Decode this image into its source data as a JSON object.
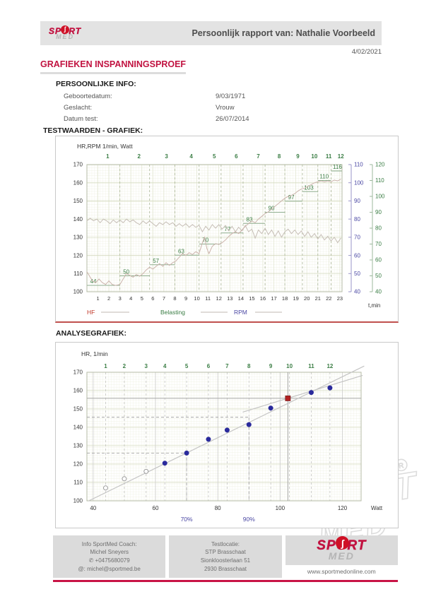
{
  "colors": {
    "accent_red": "#c11240",
    "rule_crimson": "#c81446",
    "stage_green": "#3a7d44",
    "rpm_blue": "#4a47a3",
    "hf_red": "#c0392b",
    "trace_hf": "#ccb3ac",
    "trace_rpm": "#c6beb6",
    "grid_minor": "#eceedd",
    "grid_major_h": "#d4dabe",
    "grid_minute_v": "#e2e6d2",
    "stage_dash": "#a9b497",
    "helper_grey": "#a8a8a8",
    "trend_grey": "#c4c4c4",
    "point_navy": "#2a2a9c",
    "square_red": "#b22222"
  },
  "logo": {
    "sport": "SPORT",
    "med": "MED",
    "badge": "ʃ"
  },
  "header": {
    "title": "Persoonlijk rapport van: Nathalie Voorbeeld",
    "date": "4/02/2021"
  },
  "main_title": "GRAFIEKEN INSPANNINGSPROEF",
  "personal_info": {
    "heading": "PERSOONLIJKE INFO:",
    "rows": [
      {
        "label": "Geboortedatum:",
        "value": "9/03/1971"
      },
      {
        "label": "Geslacht:",
        "value": "Vrouw"
      },
      {
        "label": "Datum test:",
        "value": "26/07/2014"
      }
    ]
  },
  "sections": {
    "testwaarden": "TESTWAARDEN - GRAFIEK:",
    "analyse": "ANALYSEGRAFIEK:"
  },
  "chart_data": [
    {
      "type": "line",
      "title": "HR,RPM 1/min, Watt",
      "xlabel": "t,min",
      "xlim": [
        0,
        23.2
      ],
      "x_ticks": [
        1,
        2,
        3,
        4,
        5,
        6,
        7,
        8,
        9,
        10,
        11,
        12,
        13,
        14,
        15,
        16,
        17,
        18,
        19,
        20,
        21,
        22,
        23
      ],
      "left_axis": {
        "lim": [
          100,
          170
        ],
        "ticks": [
          100,
          110,
          120,
          130,
          140,
          150,
          160,
          170
        ]
      },
      "right_axis_rpm": {
        "lim": [
          40,
          110
        ],
        "ticks": [
          40,
          50,
          60,
          70,
          80,
          90,
          100,
          110
        ]
      },
      "right_axis_watt": {
        "lim": [
          40,
          120
        ],
        "ticks": [
          40,
          50,
          60,
          70,
          80,
          90,
          100,
          110,
          120
        ]
      },
      "stages": {
        "numbers": [
          1,
          2,
          3,
          4,
          5,
          6,
          7,
          8,
          9,
          10,
          11,
          12
        ],
        "watts": [
          44,
          50,
          57,
          63,
          70,
          77,
          83,
          90,
          97,
          103,
          110,
          116
        ],
        "boundaries_min": [
          0,
          3,
          5.7,
          8,
          10.2,
          12.2,
          14.2,
          16.2,
          18.0,
          19.6,
          21.0,
          22.2,
          23.2
        ]
      },
      "legend": [
        {
          "label": "HF",
          "color_key": "hf_red"
        },
        {
          "label": "Belasting",
          "color_key": "stage_green"
        },
        {
          "label": "RPM",
          "color_key": "rpm_blue"
        }
      ],
      "series": [
        {
          "name": "HF",
          "unit": "1/min",
          "points": [
            [
              0,
              111
            ],
            [
              0.2,
              109
            ],
            [
              0.5,
              106
            ],
            [
              0.8,
              105
            ],
            [
              1.1,
              107
            ],
            [
              1.4,
              105
            ],
            [
              1.7,
              104
            ],
            [
              2.0,
              106
            ],
            [
              2.3,
              104
            ],
            [
              2.6,
              103.5
            ],
            [
              3.0,
              104
            ],
            [
              3.3,
              107
            ],
            [
              3.6,
              110
            ],
            [
              3.9,
              109
            ],
            [
              4.2,
              108
            ],
            [
              4.5,
              109.5
            ],
            [
              4.8,
              108.5
            ],
            [
              5.1,
              110
            ],
            [
              5.4,
              112
            ],
            [
              5.7,
              113.5
            ],
            [
              6.0,
              112.5
            ],
            [
              6.3,
              114
            ],
            [
              6.6,
              115.5
            ],
            [
              6.9,
              114
            ],
            [
              7.2,
              116
            ],
            [
              7.5,
              114.5
            ],
            [
              7.8,
              116
            ],
            [
              8.1,
              117
            ],
            [
              8.4,
              119
            ],
            [
              8.7,
              121
            ],
            [
              9.0,
              120
            ],
            [
              9.3,
              121.5
            ],
            [
              9.6,
              120.5
            ],
            [
              9.9,
              122
            ],
            [
              10.2,
              121
            ],
            [
              10.5,
              127
            ],
            [
              10.7,
              130
            ],
            [
              10.9,
              124
            ],
            [
              11.1,
              121
            ],
            [
              11.4,
              125
            ],
            [
              11.7,
              126.5
            ],
            [
              12.0,
              126
            ],
            [
              12.3,
              127
            ],
            [
              12.6,
              128.5
            ],
            [
              12.9,
              130.5
            ],
            [
              13.2,
              132
            ],
            [
              13.5,
              133
            ],
            [
              13.8,
              132
            ],
            [
              14.1,
              134
            ],
            [
              14.4,
              136
            ],
            [
              14.7,
              137.5
            ],
            [
              15.0,
              139
            ],
            [
              15.3,
              138
            ],
            [
              15.6,
              140
            ],
            [
              15.9,
              141.5
            ],
            [
              16.2,
              143
            ],
            [
              16.5,
              144
            ],
            [
              16.8,
              145.5
            ],
            [
              17.1,
              147
            ],
            [
              17.4,
              148.5
            ],
            [
              17.7,
              150
            ],
            [
              18.0,
              151.5
            ],
            [
              18.3,
              152.5
            ],
            [
              18.6,
              153
            ],
            [
              18.9,
              154
            ],
            [
              19.2,
              155.5
            ],
            [
              19.5,
              156.5
            ],
            [
              19.8,
              157
            ],
            [
              20.1,
              158
            ],
            [
              20.4,
              159
            ],
            [
              20.7,
              160
            ],
            [
              21.0,
              160.5
            ],
            [
              21.3,
              161
            ],
            [
              21.6,
              160.5
            ],
            [
              21.9,
              161
            ],
            [
              22.2,
              160.5
            ],
            [
              22.5,
              161.5
            ],
            [
              22.8,
              161
            ],
            [
              23.1,
              162
            ]
          ]
        },
        {
          "name": "RPM",
          "unit": "1/min",
          "points": [
            [
              0,
              79
            ],
            [
              0.3,
              80.5
            ],
            [
              0.6,
              79
            ],
            [
              0.9,
              80
            ],
            [
              1.2,
              78
            ],
            [
              1.5,
              80
            ],
            [
              1.8,
              79
            ],
            [
              2.1,
              77.5
            ],
            [
              2.4,
              79.5
            ],
            [
              2.7,
              78
            ],
            [
              3.0,
              79.5
            ],
            [
              3.3,
              78
            ],
            [
              3.6,
              80
            ],
            [
              3.9,
              78.5
            ],
            [
              4.2,
              79.5
            ],
            [
              4.5,
              78
            ],
            [
              4.8,
              77
            ],
            [
              5.1,
              79
            ],
            [
              5.4,
              77.5
            ],
            [
              5.7,
              79
            ],
            [
              6.0,
              77.5
            ],
            [
              6.3,
              76
            ],
            [
              6.6,
              78
            ],
            [
              6.9,
              77
            ],
            [
              7.2,
              78.5
            ],
            [
              7.5,
              77
            ],
            [
              7.8,
              78
            ],
            [
              8.1,
              76
            ],
            [
              8.4,
              77.5
            ],
            [
              8.7,
              76
            ],
            [
              9.0,
              77.5
            ],
            [
              9.3,
              75.5
            ],
            [
              9.6,
              77
            ],
            [
              9.9,
              75.5
            ],
            [
              10.2,
              76.5
            ],
            [
              10.5,
              73
            ],
            [
              10.8,
              76
            ],
            [
              11.1,
              74
            ],
            [
              11.4,
              77
            ],
            [
              11.7,
              75
            ],
            [
              12.0,
              77
            ],
            [
              12.3,
              74.5
            ],
            [
              12.6,
              76.5
            ],
            [
              12.9,
              73.5
            ],
            [
              13.2,
              76
            ],
            [
              13.5,
              73
            ],
            [
              13.8,
              75.5
            ],
            [
              14.1,
              73.5
            ],
            [
              14.4,
              76.5
            ],
            [
              14.7,
              73
            ],
            [
              15.0,
              74.5
            ],
            [
              15.3,
              69.5
            ],
            [
              15.6,
              74
            ],
            [
              15.9,
              72
            ],
            [
              16.2,
              75
            ],
            [
              16.5,
              71.5
            ],
            [
              16.8,
              74
            ],
            [
              17.1,
              70.5
            ],
            [
              17.4,
              73.5
            ],
            [
              17.7,
              70
            ],
            [
              18.0,
              73
            ],
            [
              18.3,
              74.5
            ],
            [
              18.6,
              72
            ],
            [
              18.9,
              74
            ],
            [
              19.2,
              71.5
            ],
            [
              19.5,
              73.5
            ],
            [
              19.8,
              70.5
            ],
            [
              20.1,
              73
            ],
            [
              20.4,
              70
            ],
            [
              20.7,
              72
            ],
            [
              21.0,
              69
            ],
            [
              21.3,
              71.5
            ],
            [
              21.6,
              68.5
            ],
            [
              21.9,
              70.5
            ],
            [
              22.2,
              68
            ],
            [
              22.5,
              70
            ],
            [
              22.8,
              67
            ],
            [
              23.1,
              69.5
            ]
          ]
        }
      ]
    },
    {
      "type": "scatter",
      "title": "HR, 1/min",
      "xlabel": "Watt",
      "xlim": [
        38,
        126
      ],
      "ylim": [
        100,
        170
      ],
      "x_ticks": [
        40,
        60,
        80,
        100,
        120
      ],
      "y_ticks": [
        100,
        110,
        120,
        130,
        140,
        150,
        160,
        170
      ],
      "stage_numbers": [
        1,
        2,
        3,
        4,
        5,
        6,
        7,
        8,
        9,
        10,
        11,
        12
      ],
      "stage_watts": [
        44,
        50,
        57,
        63,
        70,
        77,
        83,
        90,
        97,
        103,
        110,
        116
      ],
      "points": [
        {
          "watt": 44,
          "hr": 107,
          "style": "open"
        },
        {
          "watt": 50,
          "hr": 112,
          "style": "open"
        },
        {
          "watt": 57,
          "hr": 116,
          "style": "open"
        },
        {
          "watt": 63,
          "hr": 120.5,
          "style": "filled"
        },
        {
          "watt": 70,
          "hr": 126,
          "style": "filled"
        },
        {
          "watt": 77,
          "hr": 133.5,
          "style": "filled"
        },
        {
          "watt": 83,
          "hr": 138.5,
          "style": "filled"
        },
        {
          "watt": 90,
          "hr": 141.5,
          "style": "filled"
        },
        {
          "watt": 97,
          "hr": 150.5,
          "style": "filled"
        },
        {
          "watt": 110,
          "hr": 159,
          "style": "filled"
        },
        {
          "watt": 116,
          "hr": 161.5,
          "style": "filled"
        }
      ],
      "deflection_point": {
        "watt": 102.5,
        "hr": 155.8,
        "style": "red-square"
      },
      "trend_lines": [
        {
          "w1": 38.5,
          "hr1": 99.9,
          "w2": 127,
          "hr2": 173.4
        },
        {
          "w1": 88,
          "hr1": 148.3,
          "w2": 126.5,
          "hr2": 168.3
        }
      ],
      "reference": {
        "horizontal_solid_hr": 155.8,
        "vertical_solid_watt": 102.5,
        "dashed_marks": [
          {
            "watt": 70,
            "hr": 126
          },
          {
            "watt": 90,
            "hr": 145.5
          }
        ]
      },
      "percent_labels": [
        {
          "text": "70%",
          "watt": 70
        },
        {
          "text": "90%",
          "watt": 90
        }
      ]
    }
  ],
  "watermark": {
    "sport": "SPORT",
    "med": "MED",
    "reg": "®"
  },
  "footer": {
    "coach": [
      "Info SportMed Coach:",
      "Michel Sneyers",
      "✆ +0475680079",
      "@: michel@sportmed.be"
    ],
    "location": [
      "Testlocatie:",
      "STP Brasschaat",
      "Sionkloosterlaan 51",
      "2930 Brasschaat"
    ],
    "website": "www.sportmedonline.com"
  }
}
